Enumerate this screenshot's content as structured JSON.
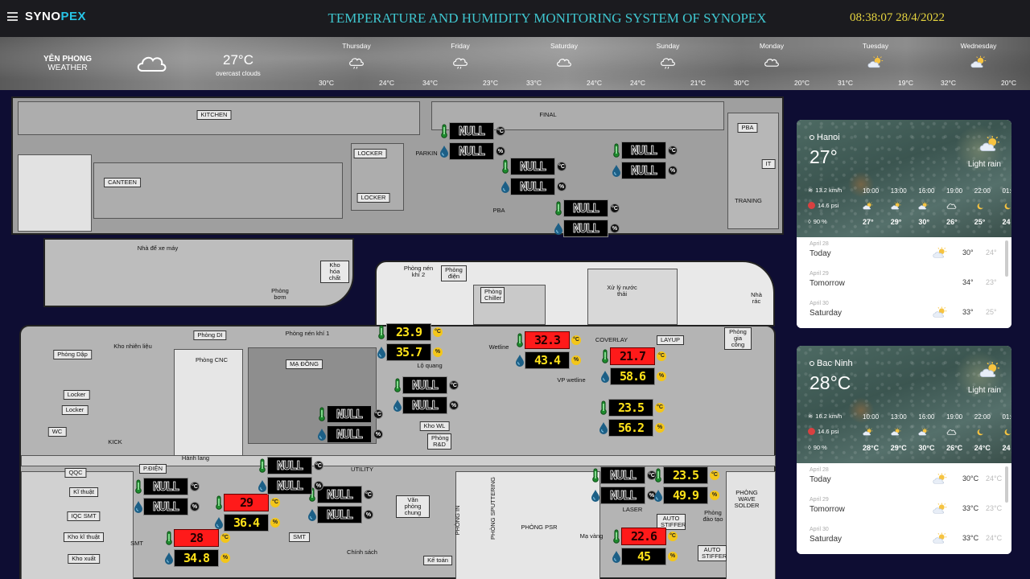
{
  "header": {
    "logo_a": "SYNO",
    "logo_b": "PEX",
    "title": "TEMPERATURE AND HUMIDITY MONITORING SYSTEM OF SYNOPEX",
    "datetime": "08:38:07 28/4/2022"
  },
  "weather_bar": {
    "location": "YÊN PHONG",
    "location_sub": "WEATHER",
    "current_temp": "27°C",
    "current_desc": "overcast clouds",
    "current_icon": "cloud-icon",
    "days": [
      {
        "name": "Thursday",
        "hi": "30°C",
        "lo": "24°C",
        "icon": "rain-cloud-icon"
      },
      {
        "name": "Friday",
        "hi": "34°C",
        "lo": "23°C",
        "icon": "rain-cloud-icon"
      },
      {
        "name": "Saturday",
        "hi": "33°C",
        "lo": "24°C",
        "icon": "cloud-icon"
      },
      {
        "name": "Sunday",
        "hi": "24°C",
        "lo": "21°C",
        "icon": "rain-cloud-icon"
      },
      {
        "name": "Monday",
        "hi": "30°C",
        "lo": "20°C",
        "icon": "cloud-icon"
      },
      {
        "name": "Tuesday",
        "hi": "31°C",
        "lo": "19°C",
        "icon": "partly-sunny-icon"
      },
      {
        "name": "Wednesday",
        "hi": "32°C",
        "lo": "20°C",
        "icon": "partly-sunny-icon"
      }
    ]
  },
  "plan_labels": {
    "kitchen": "KITCHEN",
    "final": "FINAL",
    "pba_top": "PBA",
    "it": "IT",
    "traning": "TRANING",
    "locker1": "LOCKER",
    "locker2": "LOCKER",
    "parking": "PARKIN",
    "canteen": "CANTEEN",
    "pba_mid": "PBA",
    "nha_de_xe": "Nhà để xe máy",
    "kho_hoa_chat": "Kho hóa chất",
    "phong_bom": "Phòng bơm",
    "phong_nen_khi_2": "Phòng nén khí 2",
    "phong_dien": "Phòng điện",
    "phong_chiller": "Phòng Chiller",
    "xu_ly_nuoc_thai": "Xử lý nước thải",
    "nha_rac": "Nhà rác",
    "phong_di": "Phòng DI",
    "phong_nen_khi_1": "Phòng nén khí 1",
    "kho_nhien_lieu": "Kho nhiên liệu",
    "phong_dap": "Phòng Dập",
    "phong_cnc": "Phòng CNC",
    "ma_dong": "MẠ ĐỒNG",
    "lo_quang": "Lộ quang",
    "wetline": "Wetline",
    "coverlay": "COVERLAY",
    "layup": "LAYUP",
    "phong_gia_cong": "Phòng gia công",
    "locker3": "Locker",
    "locker4": "Locker",
    "wc": "WC",
    "kick": "KICK",
    "kho_wl": "Kho WL",
    "phong_rd": "Phòng R&D",
    "vp_wetline": "VP wetline",
    "hanh_lang": "Hành lang",
    "qqc": "QQC",
    "ki_thuat": "Kĩ thuật",
    "iqc_smt": "IQC SMT",
    "kho_ki_thuat": "Kho kĩ thuật",
    "kho_xuat": "Kho xuất",
    "smt1": "SMT",
    "smt2": "SMT",
    "p_dien": "P.ĐIỆN",
    "utility": "UTILITY",
    "van_phong_chung": "Văn phòng chung",
    "phong_in": "PHÒNG IN",
    "phong_sputtering": "PHÒNG SPUTTERING",
    "phong_psr": "PHÒNG PSR",
    "chinh_sach": "Chính sách",
    "ke_toan": "Kế toán",
    "laser": "LASER",
    "may_vang": "Mạ vàng",
    "auto_stiffer_1": "AUTO STIFFER",
    "auto_stiffer_2": "AUTO STIFFER",
    "phong_dao_tao": "Phòng đào tạo",
    "phong_wave_solder": "PHÒNG WAVE SOLDER"
  },
  "sensors": [
    {
      "id": "parking",
      "temp": "NULL",
      "hum": "NULL",
      "temp_unit": "°C",
      "hum_unit": "%"
    },
    {
      "id": "zone-a",
      "temp": "NULL",
      "hum": "NULL",
      "temp_unit": "°C",
      "hum_unit": "%"
    },
    {
      "id": "final-mid",
      "temp": "NULL",
      "hum": "NULL",
      "temp_unit": "°C",
      "hum_unit": "%"
    },
    {
      "id": "pba",
      "temp": "NULL",
      "hum": "NULL",
      "temp_unit": "°C",
      "hum_unit": "%"
    },
    {
      "id": "phong-nen-khi-1",
      "temp": "23.9",
      "hum": "35.7",
      "temp_unit": "°C",
      "hum_unit": "%",
      "alarm": false
    },
    {
      "id": "wetline",
      "temp": "32.3",
      "hum": "43.4",
      "temp_unit": "°C",
      "hum_unit": "%",
      "alarm": true
    },
    {
      "id": "coverlay",
      "temp": "21.7",
      "hum": "58.6",
      "temp_unit": "°C",
      "hum_unit": "%",
      "alarm": true
    },
    {
      "id": "lo-quang",
      "temp": "NULL",
      "hum": "NULL",
      "temp_unit": "°C",
      "hum_unit": "%"
    },
    {
      "id": "coverlay-2",
      "temp": "23.5",
      "hum": "56.2",
      "temp_unit": "°C",
      "hum_unit": "%",
      "alarm": false
    },
    {
      "id": "ma-dong",
      "temp": "NULL",
      "hum": "NULL",
      "temp_unit": "°C",
      "hum_unit": "%"
    },
    {
      "id": "utility",
      "temp": "NULL",
      "hum": "NULL",
      "temp_unit": "°C",
      "hum_unit": "%"
    },
    {
      "id": "ki-thuat",
      "temp": "NULL",
      "hum": "NULL",
      "temp_unit": "°C",
      "hum_unit": "%"
    },
    {
      "id": "smt-a",
      "temp": "29",
      "hum": "36.4",
      "temp_unit": "°C",
      "hum_unit": "%",
      "alarm": true
    },
    {
      "id": "smt-b",
      "temp": "NULL",
      "hum": "NULL",
      "temp_unit": "°C",
      "hum_unit": "%"
    },
    {
      "id": "smt-c",
      "temp": "28",
      "hum": "34.8",
      "temp_unit": "°C",
      "hum_unit": "%",
      "alarm": true
    },
    {
      "id": "laser",
      "temp": "NULL",
      "hum": "NULL",
      "temp_unit": "°C",
      "hum_unit": "%"
    },
    {
      "id": "auto-stiffer",
      "temp": "23.5",
      "hum": "49.9",
      "temp_unit": "°C",
      "hum_unit": "%",
      "alarm": false
    },
    {
      "id": "may-vang",
      "temp": "22.6",
      "hum": "45",
      "temp_unit": "°C",
      "hum_unit": "%",
      "alarm": true
    }
  ],
  "cards": [
    {
      "city": "Hanoi",
      "temp": "27°",
      "condition": "Light rain",
      "wind": "13.2 km/h",
      "pressure": "14.6 psi",
      "humidity": "90 %",
      "hours": [
        "10:00",
        "13:00",
        "16:00",
        "19:00",
        "22:00",
        "01:0"
      ],
      "hour_temps": [
        "27°",
        "29°",
        "30°",
        "26°",
        "25°",
        "24"
      ],
      "hour_icons": [
        "partly-sunny-icon",
        "partly-sunny-icon",
        "partly-sunny-icon",
        "cloud-icon",
        "moon-icon",
        "moon-icon"
      ],
      "daily": [
        {
          "date": "April 28",
          "name": "Today",
          "hi": "30°",
          "lo": "24°",
          "icon": "partly-sunny-icon"
        },
        {
          "date": "April 29",
          "name": "Tomorrow",
          "hi": "34°",
          "lo": "23°",
          "icon": "cloud-icon"
        },
        {
          "date": "April 30",
          "name": "Saturday",
          "hi": "33°",
          "lo": "25°",
          "icon": "partly-sunny-icon"
        }
      ]
    },
    {
      "city": "Bac Ninh",
      "temp": "28°C",
      "condition": "Light rain",
      "wind": "16.2 km/h",
      "pressure": "14.6 psi",
      "humidity": "90 %",
      "hours": [
        "10:00",
        "13:00",
        "16:00",
        "19:00",
        "22:00",
        "01:0"
      ],
      "hour_temps": [
        "28°C",
        "29°C",
        "30°C",
        "26°C",
        "24°C",
        "24"
      ],
      "hour_icons": [
        "partly-sunny-icon",
        "partly-sunny-icon",
        "partly-sunny-icon",
        "cloud-icon",
        "moon-icon",
        "moon-icon"
      ],
      "daily": [
        {
          "date": "April 28",
          "name": "Today",
          "hi": "30°C",
          "lo": "24°C",
          "icon": "partly-sunny-icon"
        },
        {
          "date": "April 29",
          "name": "Tomorrow",
          "hi": "33°C",
          "lo": "23°C",
          "icon": "partly-sunny-icon"
        },
        {
          "date": "April 30",
          "name": "Saturday",
          "hi": "33°C",
          "lo": "24°C",
          "icon": "partly-sunny-icon"
        }
      ]
    }
  ],
  "colors": {
    "page_bg": "#0e0d33",
    "title": "#3fc6cf",
    "clock": "#e6d53f",
    "alarm": "#ff1a1a",
    "value_ok": "#ffe21a"
  }
}
